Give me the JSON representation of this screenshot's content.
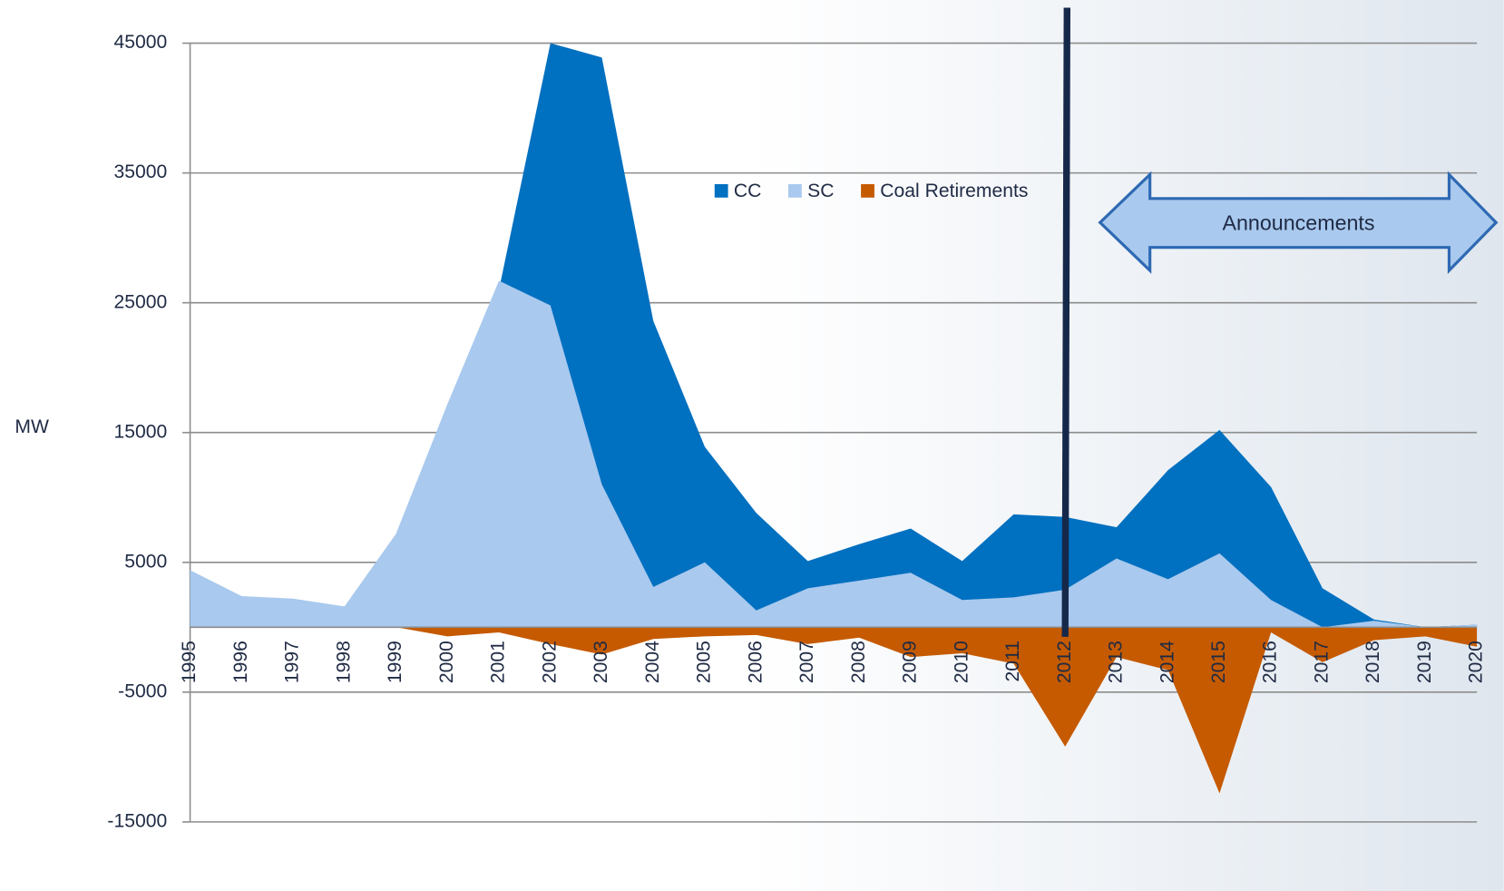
{
  "chart_data": {
    "type": "area",
    "y_label": "MW",
    "categories": [
      "1995",
      "1996",
      "1997",
      "1998",
      "1999",
      "2000",
      "2001",
      "2002",
      "2003",
      "2004",
      "2005",
      "2006",
      "2007",
      "2008",
      "2009",
      "2010",
      "2011",
      "2012",
      "2013",
      "2014",
      "2015",
      "2016",
      "2017",
      "2018",
      "2019",
      "2020"
    ],
    "series": [
      {
        "name": "CC",
        "color": "#0070c0",
        "values": [
          2000,
          1500,
          1500,
          1000,
          5000,
          10000,
          26000,
          45000,
          43900,
          23600,
          13900,
          8800,
          5100,
          6400,
          7600,
          5100,
          8700,
          8500,
          7700,
          12100,
          15200,
          10800,
          3000,
          600,
          0,
          200
        ]
      },
      {
        "name": "SC",
        "color": "#a9c9ee",
        "values": [
          4400,
          2400,
          2200,
          1600,
          7200,
          17200,
          26700,
          24800,
          11000,
          3100,
          5000,
          1300,
          3000,
          3600,
          4200,
          2100,
          2300,
          2900,
          5300,
          3700,
          5700,
          2100,
          0,
          500,
          0,
          200
        ]
      },
      {
        "name": "Coal Retirements",
        "color": "#c55a00",
        "values": [
          0,
          0,
          0,
          0,
          0,
          -700,
          -400,
          -1300,
          -2100,
          -900,
          -700,
          -600,
          -1300,
          -800,
          -2300,
          -2000,
          -2800,
          -9200,
          -2300,
          -3300,
          -12800,
          -400,
          -2700,
          -1000,
          -700,
          -1500
        ]
      }
    ],
    "ylim": [
      -15000,
      45000
    ],
    "yticks": [
      -15000,
      -5000,
      5000,
      15000,
      25000,
      35000,
      45000
    ],
    "grid": true,
    "reference_line": "2012",
    "annotation": "Announcements"
  }
}
